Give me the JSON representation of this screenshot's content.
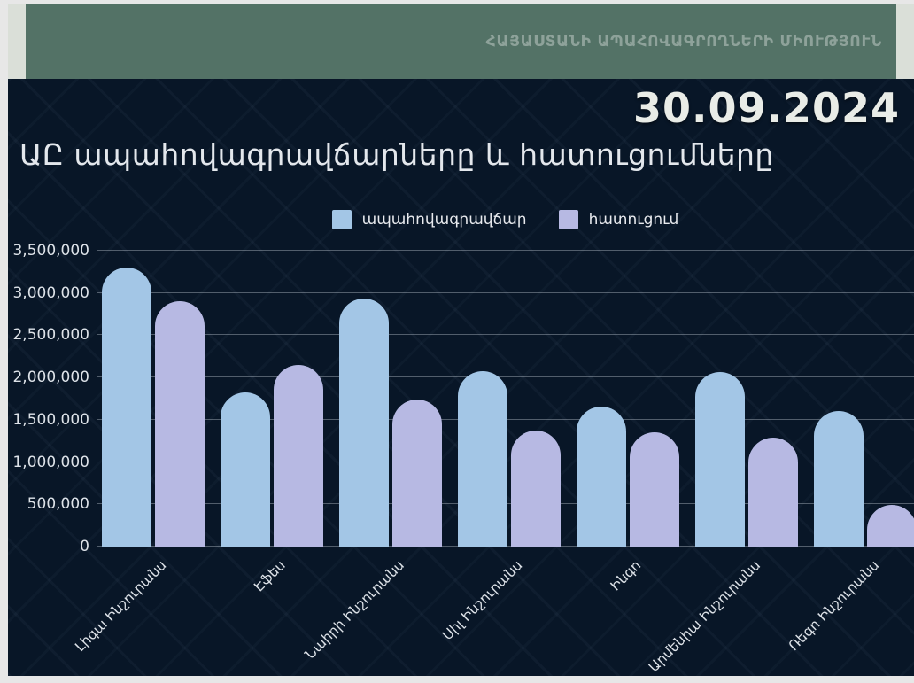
{
  "header": {
    "org_title": "ՀԱՅԱՍՏԱՆԻ ԱՊԱՀՈՎԱԳՐՈՂՆԵՐԻ ՄԻՈՒԹՅՈՒՆ"
  },
  "date_label": "30.09.2024",
  "chart_data": {
    "type": "bar",
    "title": "ԱԸ ապահովագրավճարները և հատուցումները",
    "categories": [
      "Լիգա Ինշուրանս",
      "Էֆես",
      "Նաիրի Ինշուրանս",
      "Սիլ Ինշուրանս",
      "Ինգո",
      "Արմենիա Ինշուրանս",
      "Ռեգո Ինշուրանս"
    ],
    "series": [
      {
        "name": "ապահովագրավճար",
        "color": "#a3c6e6",
        "values": [
          3300000,
          1820000,
          2930000,
          2080000,
          1660000,
          2060000,
          1600000
        ]
      },
      {
        "name": "հատուցում",
        "color": "#b7b9e3",
        "values": [
          2900000,
          2150000,
          1740000,
          1370000,
          1350000,
          1290000,
          490000
        ]
      }
    ],
    "ylim": [
      0,
      3500000
    ],
    "ytick_step": 500000,
    "grid": true,
    "legend_position": "top"
  },
  "colors": {
    "page_margin": "#e7e7e7",
    "slide_backdrop": "#dadfd8",
    "header_green": "#537266",
    "panel_navy": "#081627",
    "text_light": "#e8eaee"
  }
}
